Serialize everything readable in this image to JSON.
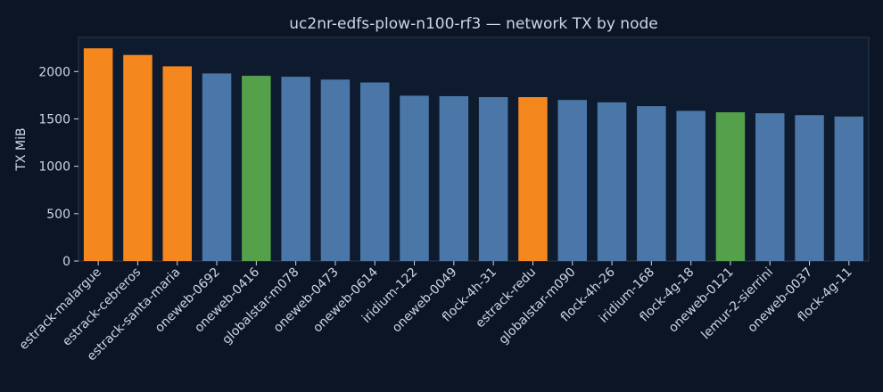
{
  "chart_data": {
    "type": "bar",
    "title": "uc2nr-edfs-plow-n100-rf3 — network TX by node",
    "xlabel": "",
    "ylabel": "TX MiB",
    "ylim": [
      0,
      2360
    ],
    "yticks": [
      0,
      500,
      1000,
      1500,
      2000
    ],
    "grid": false,
    "colors": {
      "background": "#0b1526",
      "plot_background": "#0e1a2d",
      "axis": "#2a3a50",
      "text": "#cdd6e2",
      "blue": "#4a77a8",
      "orange": "#f5871f",
      "green": "#55a04a"
    },
    "categories": [
      "estrack-malargue",
      "estrack-cebreros",
      "estrack-santa-maria",
      "oneweb-0692",
      "oneweb-0416",
      "globalstar-m078",
      "oneweb-0473",
      "oneweb-0614",
      "iridium-122",
      "oneweb-0049",
      "flock-4h-31",
      "estrack-redu",
      "globalstar-m090",
      "flock-4h-26",
      "iridium-168",
      "flock-4g-18",
      "oneweb-0121",
      "lemur-2-sierrini",
      "oneweb-0037",
      "flock-4g-11"
    ],
    "values": [
      2245,
      2175,
      2055,
      1980,
      1955,
      1945,
      1915,
      1885,
      1745,
      1740,
      1730,
      1730,
      1700,
      1675,
      1635,
      1585,
      1570,
      1560,
      1540,
      1525
    ],
    "bar_colors": [
      "orange",
      "orange",
      "orange",
      "blue",
      "green",
      "blue",
      "blue",
      "blue",
      "blue",
      "blue",
      "blue",
      "orange",
      "blue",
      "blue",
      "blue",
      "blue",
      "green",
      "blue",
      "blue",
      "blue"
    ]
  }
}
